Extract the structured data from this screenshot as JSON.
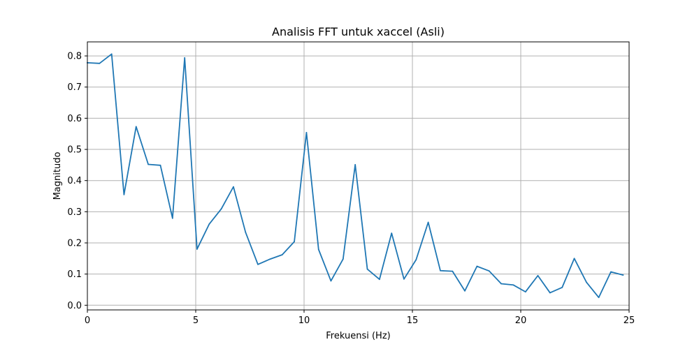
{
  "chart_data": {
    "type": "line",
    "title": "Analisis FFT untuk xaccel (Asli)",
    "xlabel": "Frekuensi (Hz)",
    "ylabel": "Magnitudo",
    "xlim": [
      0,
      25
    ],
    "ylim": [
      -0.015,
      0.845
    ],
    "xticks": [
      0,
      5,
      10,
      15,
      20,
      25
    ],
    "yticks": [
      0.0,
      0.1,
      0.2,
      0.3,
      0.4,
      0.5,
      0.6,
      0.7,
      0.8
    ],
    "xtick_labels": [
      "0",
      "5",
      "10",
      "15",
      "20",
      "25"
    ],
    "ytick_labels": [
      "0.0",
      "0.1",
      "0.2",
      "0.3",
      "0.4",
      "0.5",
      "0.6",
      "0.7",
      "0.8"
    ],
    "grid": true,
    "series": [
      {
        "color": "#1f77b4",
        "x": [
          0.0,
          0.56,
          1.12,
          1.69,
          2.25,
          2.81,
          3.37,
          3.93,
          4.49,
          5.06,
          5.62,
          6.18,
          6.74,
          7.3,
          7.87,
          8.43,
          8.99,
          9.55,
          10.11,
          10.67,
          11.24,
          11.8,
          12.36,
          12.92,
          13.48,
          14.04,
          14.61,
          15.17,
          15.73,
          16.29,
          16.85,
          17.42,
          17.98,
          18.54,
          19.1,
          19.66,
          20.22,
          20.79,
          21.35,
          21.91,
          22.47,
          23.03,
          23.6,
          24.16,
          24.72
        ],
        "y": [
          0.778,
          0.776,
          0.806,
          0.355,
          0.573,
          0.452,
          0.449,
          0.279,
          0.794,
          0.18,
          0.26,
          0.309,
          0.38,
          0.234,
          0.131,
          0.148,
          0.162,
          0.204,
          0.554,
          0.179,
          0.078,
          0.148,
          0.451,
          0.116,
          0.083,
          0.231,
          0.084,
          0.146,
          0.266,
          0.111,
          0.109,
          0.046,
          0.125,
          0.11,
          0.069,
          0.065,
          0.043,
          0.095,
          0.04,
          0.057,
          0.15,
          0.074,
          0.025,
          0.107,
          0.097
        ]
      }
    ]
  }
}
